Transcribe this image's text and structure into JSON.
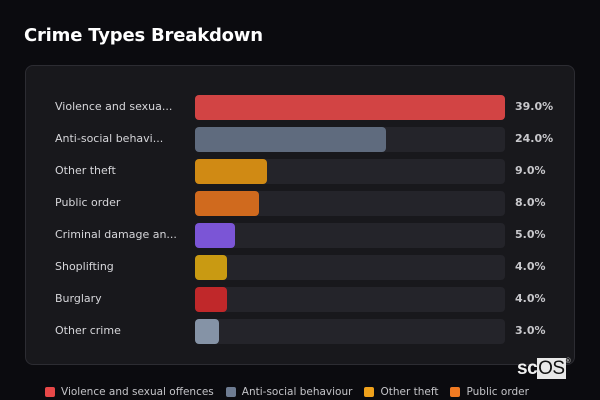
{
  "header": {
    "title": "Crime Types Breakdown"
  },
  "chart_data": {
    "type": "bar",
    "orientation": "horizontal",
    "title": "Crime Types Breakdown",
    "categories": [
      "Violence and sexual offences",
      "Anti-social behaviour",
      "Other theft",
      "Public order",
      "Criminal damage and arson",
      "Shoplifting",
      "Burglary",
      "Other crime"
    ],
    "display_labels": [
      "Violence and sexua...",
      "Anti-social behavi...",
      "Other theft",
      "Public order",
      "Criminal damage an...",
      "Shoplifting",
      "Burglary",
      "Other crime"
    ],
    "values": [
      39.0,
      24.0,
      9.0,
      8.0,
      5.0,
      4.0,
      4.0,
      3.0
    ],
    "value_labels": [
      "39.0%",
      "24.0%",
      "9.0%",
      "8.0%",
      "5.0%",
      "4.0%",
      "4.0%",
      "3.0%"
    ],
    "colors": [
      "#d24444",
      "#5f6b7e",
      "#d08a14",
      "#d06a1e",
      "#7b55d6",
      "#c99a12",
      "#c0282a",
      "#8593a6"
    ],
    "unit": "%",
    "xlim": [
      0,
      39
    ],
    "legend_position": "bottom"
  },
  "legend": {
    "items": [
      {
        "label": "Violence and sexual offences",
        "color": "#e84848"
      },
      {
        "label": "Anti-social behaviour",
        "color": "#6e7c92"
      },
      {
        "label": "Other theft",
        "color": "#f0a21c"
      },
      {
        "label": "Public order",
        "color": "#f07a22"
      }
    ]
  },
  "watermark": {
    "prefix": "sc",
    "highlight": "OS",
    "mark": "®"
  }
}
